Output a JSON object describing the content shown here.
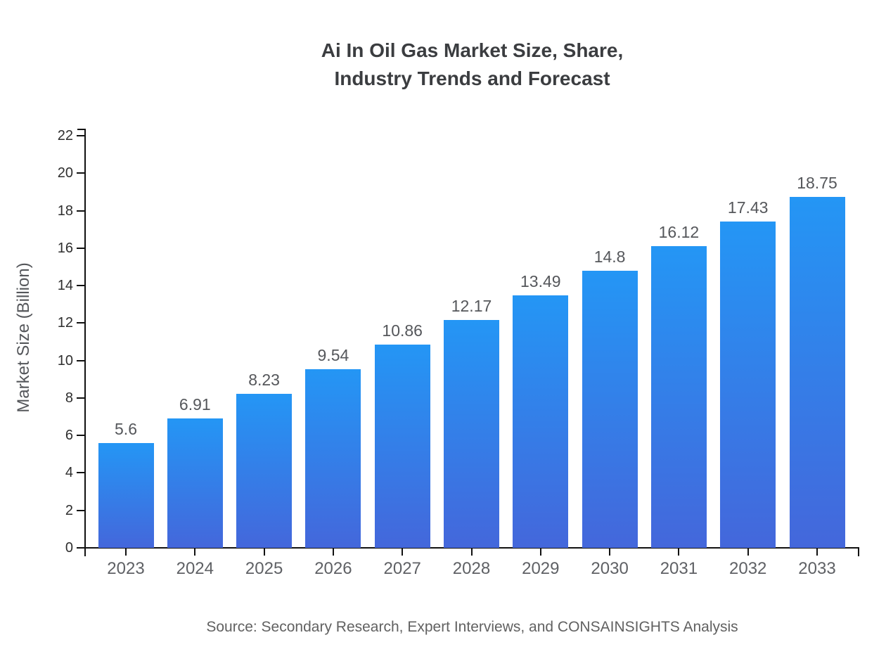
{
  "header": {
    "title_full": "Ai In Oil Gas Market Size, Share, Industry Trends and Forecast"
  },
  "chart_data": {
    "type": "bar",
    "title": "Ai In Oil Gas Market Size, Share, Industry Trends and Forecast",
    "title_lines": [
      "Ai In Oil Gas Market Size, Share,",
      "Industry Trends and Forecast"
    ],
    "categories": [
      "2023",
      "2024",
      "2025",
      "2026",
      "2027",
      "2028",
      "2029",
      "2030",
      "2031",
      "2032",
      "2033"
    ],
    "values": [
      5.6,
      6.91,
      8.23,
      9.54,
      10.86,
      12.17,
      13.49,
      14.8,
      16.12,
      17.43,
      18.75
    ],
    "value_labels": [
      "5.6",
      "6.91",
      "8.23",
      "9.54",
      "10.86",
      "12.17",
      "13.49",
      "14.8",
      "16.12",
      "17.43",
      "18.75"
    ],
    "xlabel": "",
    "ylabel": "Market Size (Billion)",
    "ylim": [
      0,
      22
    ],
    "ytick_step": 2,
    "grid": false,
    "legend_position": "none",
    "bar_gradient_top": "#2496F5",
    "bar_gradient_bottom": "#4467DB",
    "axis_color": "#111111",
    "source_note": "Source: Secondary Research, Expert Interviews, and CONSAINSIGHTS Analysis"
  }
}
